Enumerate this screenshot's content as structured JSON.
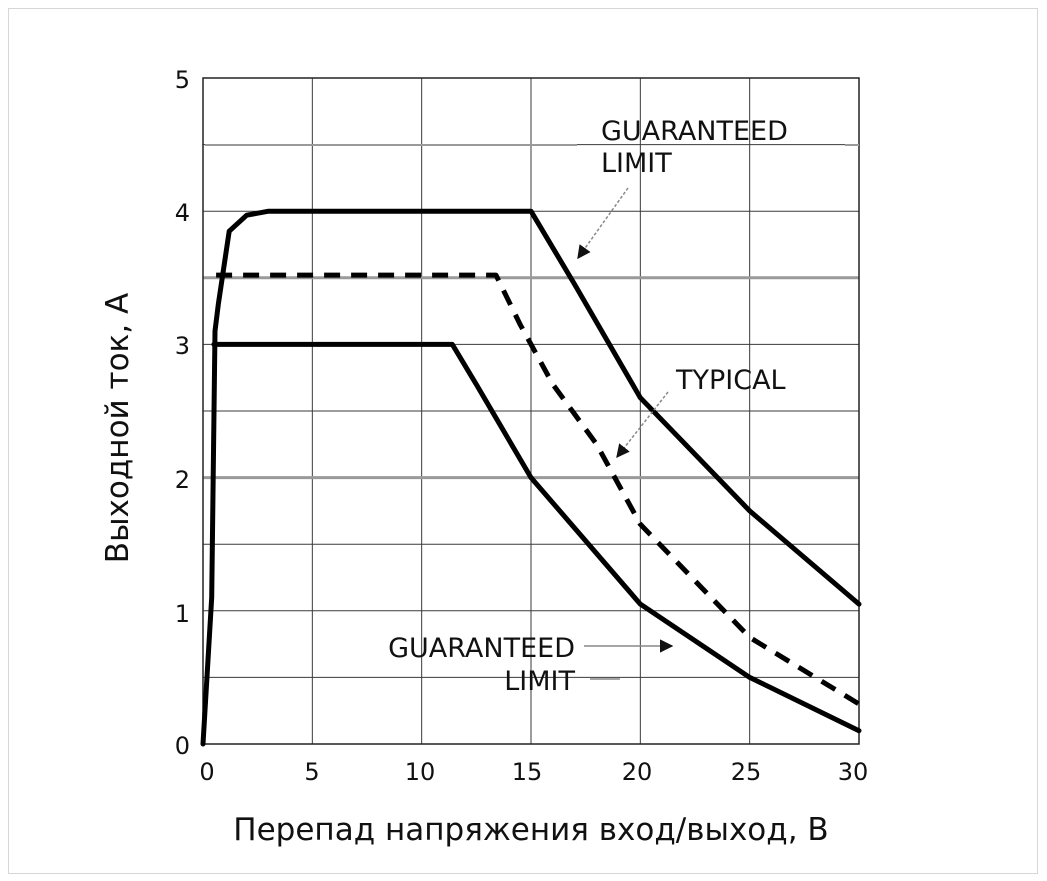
{
  "chart_data": {
    "type": "line",
    "title": "",
    "xlabel": "Перепад напряжения вход/выход, В",
    "ylabel": "Выходной ток, А",
    "xlim": [
      0,
      30
    ],
    "ylim": [
      0,
      5
    ],
    "xticks": [
      "0",
      "5",
      "10",
      "15",
      "20",
      "25",
      "30"
    ],
    "yticks": [
      "0",
      "1",
      "2",
      "3",
      "4",
      "5"
    ],
    "grid": true,
    "series": [
      {
        "name": "GUARANTEED LIMIT (upper)",
        "style": "solid",
        "x": [
          0,
          0.4,
          0.55,
          0.7,
          1.2,
          2.0,
          3.0,
          5,
          10,
          15,
          17,
          20,
          25,
          30
        ],
        "y": [
          0,
          1.1,
          3.1,
          3.3,
          3.85,
          3.97,
          4.0,
          4.0,
          4.0,
          4.0,
          3.45,
          2.6,
          1.75,
          1.05
        ]
      },
      {
        "name": "TYPICAL",
        "style": "dashed",
        "x": [
          0.6,
          5,
          10,
          13.4,
          14.5,
          16,
          18,
          20,
          25,
          30
        ],
        "y": [
          3.52,
          3.52,
          3.52,
          3.52,
          3.15,
          2.7,
          2.25,
          1.65,
          0.8,
          0.3
        ]
      },
      {
        "name": "GUARANTEED LIMIT (lower)",
        "style": "solid",
        "x": [
          0.5,
          5,
          11.4,
          12.5,
          15,
          20,
          25,
          30
        ],
        "y": [
          3.0,
          3.0,
          3.0,
          2.7,
          2.0,
          1.05,
          0.5,
          0.1
        ]
      }
    ],
    "reference_lines": [
      {
        "y": 4.5
      },
      {
        "y": 3.5
      },
      {
        "y": 2.0
      }
    ],
    "annotations": [
      {
        "lines": [
          "GUARANTEED",
          "LIMIT"
        ],
        "target": "upper solid curve"
      },
      {
        "lines": [
          "TYPICAL"
        ],
        "target": "dashed curve"
      },
      {
        "lines": [
          "GUARANTEED",
          "LIMIT"
        ],
        "target": "lower solid curve"
      }
    ]
  }
}
